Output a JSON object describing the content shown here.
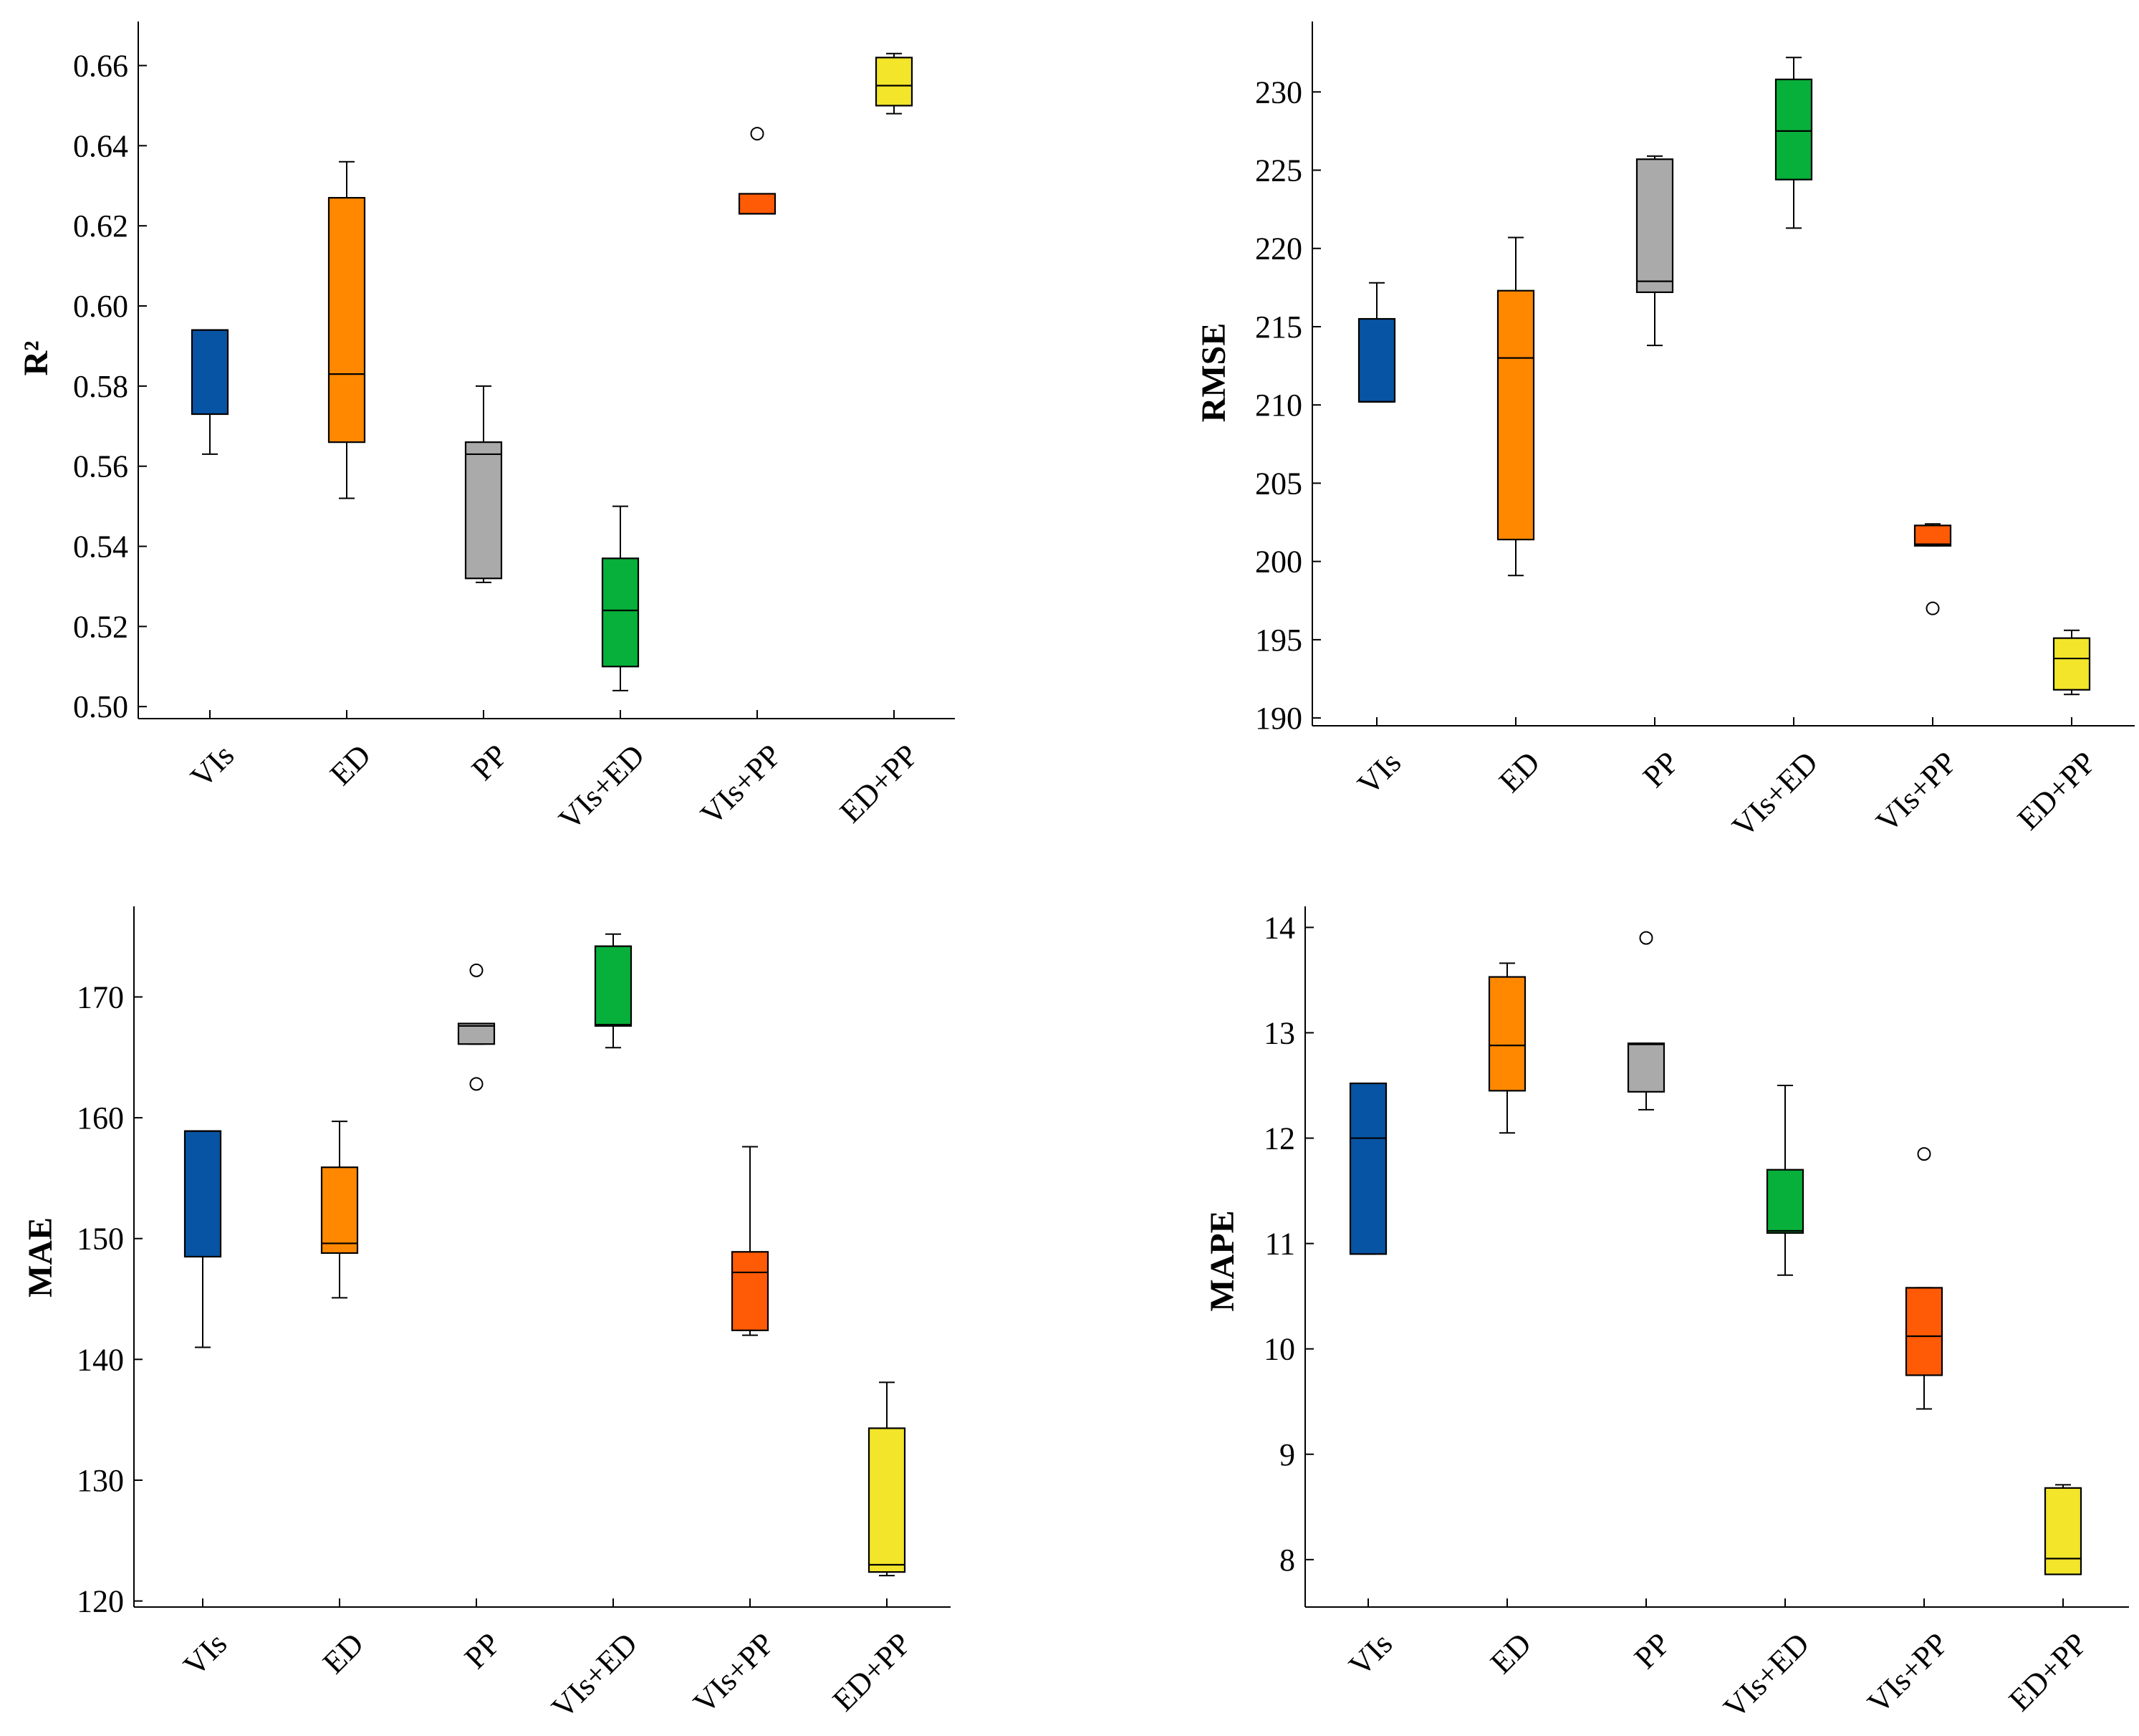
{
  "colors": {
    "VIs": "#0854a4",
    "ED": "#ff8800",
    "PP": "#aaaaaa",
    "VIs+ED": "#07b03a",
    "VIs+PP": "#ff5a06",
    "ED+PP": "#f2e52a"
  },
  "chart_data": [
    {
      "type": "box",
      "ylabel": "R²",
      "ylim": [
        0.497,
        0.671
      ],
      "yticks": [
        0.5,
        0.52,
        0.54,
        0.56,
        0.58,
        0.6,
        0.62,
        0.64,
        0.66
      ],
      "ytick_labels": [
        "0.50",
        "0.52",
        "0.54",
        "0.56",
        "0.58",
        "0.60",
        "0.62",
        "0.64",
        "0.66"
      ],
      "categories": [
        "VIs",
        "ED",
        "PP",
        "VIs+ED",
        "VIs+PP",
        "ED+PP"
      ],
      "boxes": [
        {
          "whislo": 0.563,
          "q1": 0.573,
          "med": 0.594,
          "q3": 0.594,
          "whishi": 0.594,
          "fliers": []
        },
        {
          "whislo": 0.552,
          "q1": 0.566,
          "med": 0.583,
          "q3": 0.627,
          "whishi": 0.636,
          "fliers": []
        },
        {
          "whislo": 0.531,
          "q1": 0.532,
          "med": 0.563,
          "q3": 0.566,
          "whishi": 0.58,
          "fliers": []
        },
        {
          "whislo": 0.504,
          "q1": 0.51,
          "med": 0.524,
          "q3": 0.537,
          "whishi": 0.55,
          "fliers": []
        },
        {
          "whislo": 0.623,
          "q1": 0.623,
          "med": 0.623,
          "q3": 0.628,
          "whishi": 0.628,
          "fliers": [
            0.643
          ]
        },
        {
          "whislo": 0.648,
          "q1": 0.65,
          "med": 0.655,
          "q3": 0.662,
          "whishi": 0.663,
          "fliers": []
        }
      ]
    },
    {
      "type": "box",
      "ylabel": "RMSE",
      "ylim": [
        189.5,
        234.5
      ],
      "yticks": [
        190,
        195,
        200,
        205,
        210,
        215,
        220,
        225,
        230
      ],
      "ytick_labels": [
        "190",
        "195",
        "200",
        "205",
        "210",
        "215",
        "220",
        "225",
        "230"
      ],
      "categories": [
        "VIs",
        "ED",
        "PP",
        "VIs+ED",
        "VIs+PP",
        "ED+PP"
      ],
      "boxes": [
        {
          "whislo": 210.2,
          "q1": 210.2,
          "med": 210.2,
          "q3": 215.5,
          "whishi": 217.8,
          "fliers": []
        },
        {
          "whislo": 199.1,
          "q1": 201.4,
          "med": 213.0,
          "q3": 217.3,
          "whishi": 220.7,
          "fliers": []
        },
        {
          "whislo": 213.8,
          "q1": 217.2,
          "med": 217.9,
          "q3": 225.7,
          "whishi": 225.9,
          "fliers": []
        },
        {
          "whislo": 221.3,
          "q1": 224.4,
          "med": 227.5,
          "q3": 230.8,
          "whishi": 232.2,
          "fliers": []
        },
        {
          "whislo": 201.0,
          "q1": 201.0,
          "med": 201.1,
          "q3": 202.3,
          "whishi": 202.4,
          "fliers": [
            197.0
          ]
        },
        {
          "whislo": 191.5,
          "q1": 191.8,
          "med": 193.8,
          "q3": 195.1,
          "whishi": 195.6,
          "fliers": []
        }
      ]
    },
    {
      "type": "box",
      "ylabel": "MAE",
      "ylim": [
        119.5,
        177.5
      ],
      "yticks": [
        120,
        130,
        140,
        150,
        160,
        170
      ],
      "ytick_labels": [
        "120",
        "130",
        "140",
        "150",
        "160",
        "170"
      ],
      "categories": [
        "VIs",
        "ED",
        "PP",
        "VIs+ED",
        "VIs+PP",
        "ED+PP"
      ],
      "boxes": [
        {
          "whislo": 141.0,
          "q1": 148.5,
          "med": 158.9,
          "q3": 158.9,
          "whishi": 158.9,
          "fliers": []
        },
        {
          "whislo": 145.1,
          "q1": 148.8,
          "med": 149.6,
          "q3": 155.9,
          "whishi": 159.7,
          "fliers": []
        },
        {
          "whislo": 166.1,
          "q1": 166.1,
          "med": 167.6,
          "q3": 167.8,
          "whishi": 167.8,
          "fliers": [
            172.2,
            162.8
          ]
        },
        {
          "whislo": 165.8,
          "q1": 167.6,
          "med": 167.7,
          "q3": 174.2,
          "whishi": 175.2,
          "fliers": []
        },
        {
          "whislo": 142.0,
          "q1": 142.4,
          "med": 147.2,
          "q3": 148.9,
          "whishi": 157.6,
          "fliers": []
        },
        {
          "whislo": 122.1,
          "q1": 122.4,
          "med": 123.0,
          "q3": 134.3,
          "whishi": 138.1,
          "fliers": []
        }
      ]
    },
    {
      "type": "box",
      "ylabel": "MAPE",
      "ylim": [
        7.55,
        14.2
      ],
      "yticks": [
        8,
        9,
        10,
        11,
        12,
        13,
        14
      ],
      "ytick_labels": [
        "8",
        "9",
        "10",
        "11",
        "12",
        "13",
        "14"
      ],
      "categories": [
        "VIs",
        "ED",
        "PP",
        "VIs+ED",
        "VIs+PP",
        "ED+PP"
      ],
      "boxes": [
        {
          "whislo": 10.9,
          "q1": 10.9,
          "med": 12.0,
          "q3": 12.52,
          "whishi": 12.52,
          "fliers": []
        },
        {
          "whislo": 12.05,
          "q1": 12.45,
          "med": 12.88,
          "q3": 13.53,
          "whishi": 13.66,
          "fliers": []
        },
        {
          "whislo": 12.27,
          "q1": 12.44,
          "med": 12.89,
          "q3": 12.9,
          "whishi": 12.9,
          "fliers": [
            13.9
          ]
        },
        {
          "whislo": 10.7,
          "q1": 11.1,
          "med": 11.12,
          "q3": 11.7,
          "whishi": 12.5,
          "fliers": []
        },
        {
          "whislo": 9.43,
          "q1": 9.75,
          "med": 10.12,
          "q3": 10.58,
          "whishi": 10.58,
          "fliers": [
            11.85
          ]
        },
        {
          "whislo": 7.86,
          "q1": 7.86,
          "med": 8.01,
          "q3": 8.68,
          "whishi": 8.71,
          "fliers": []
        }
      ]
    }
  ]
}
